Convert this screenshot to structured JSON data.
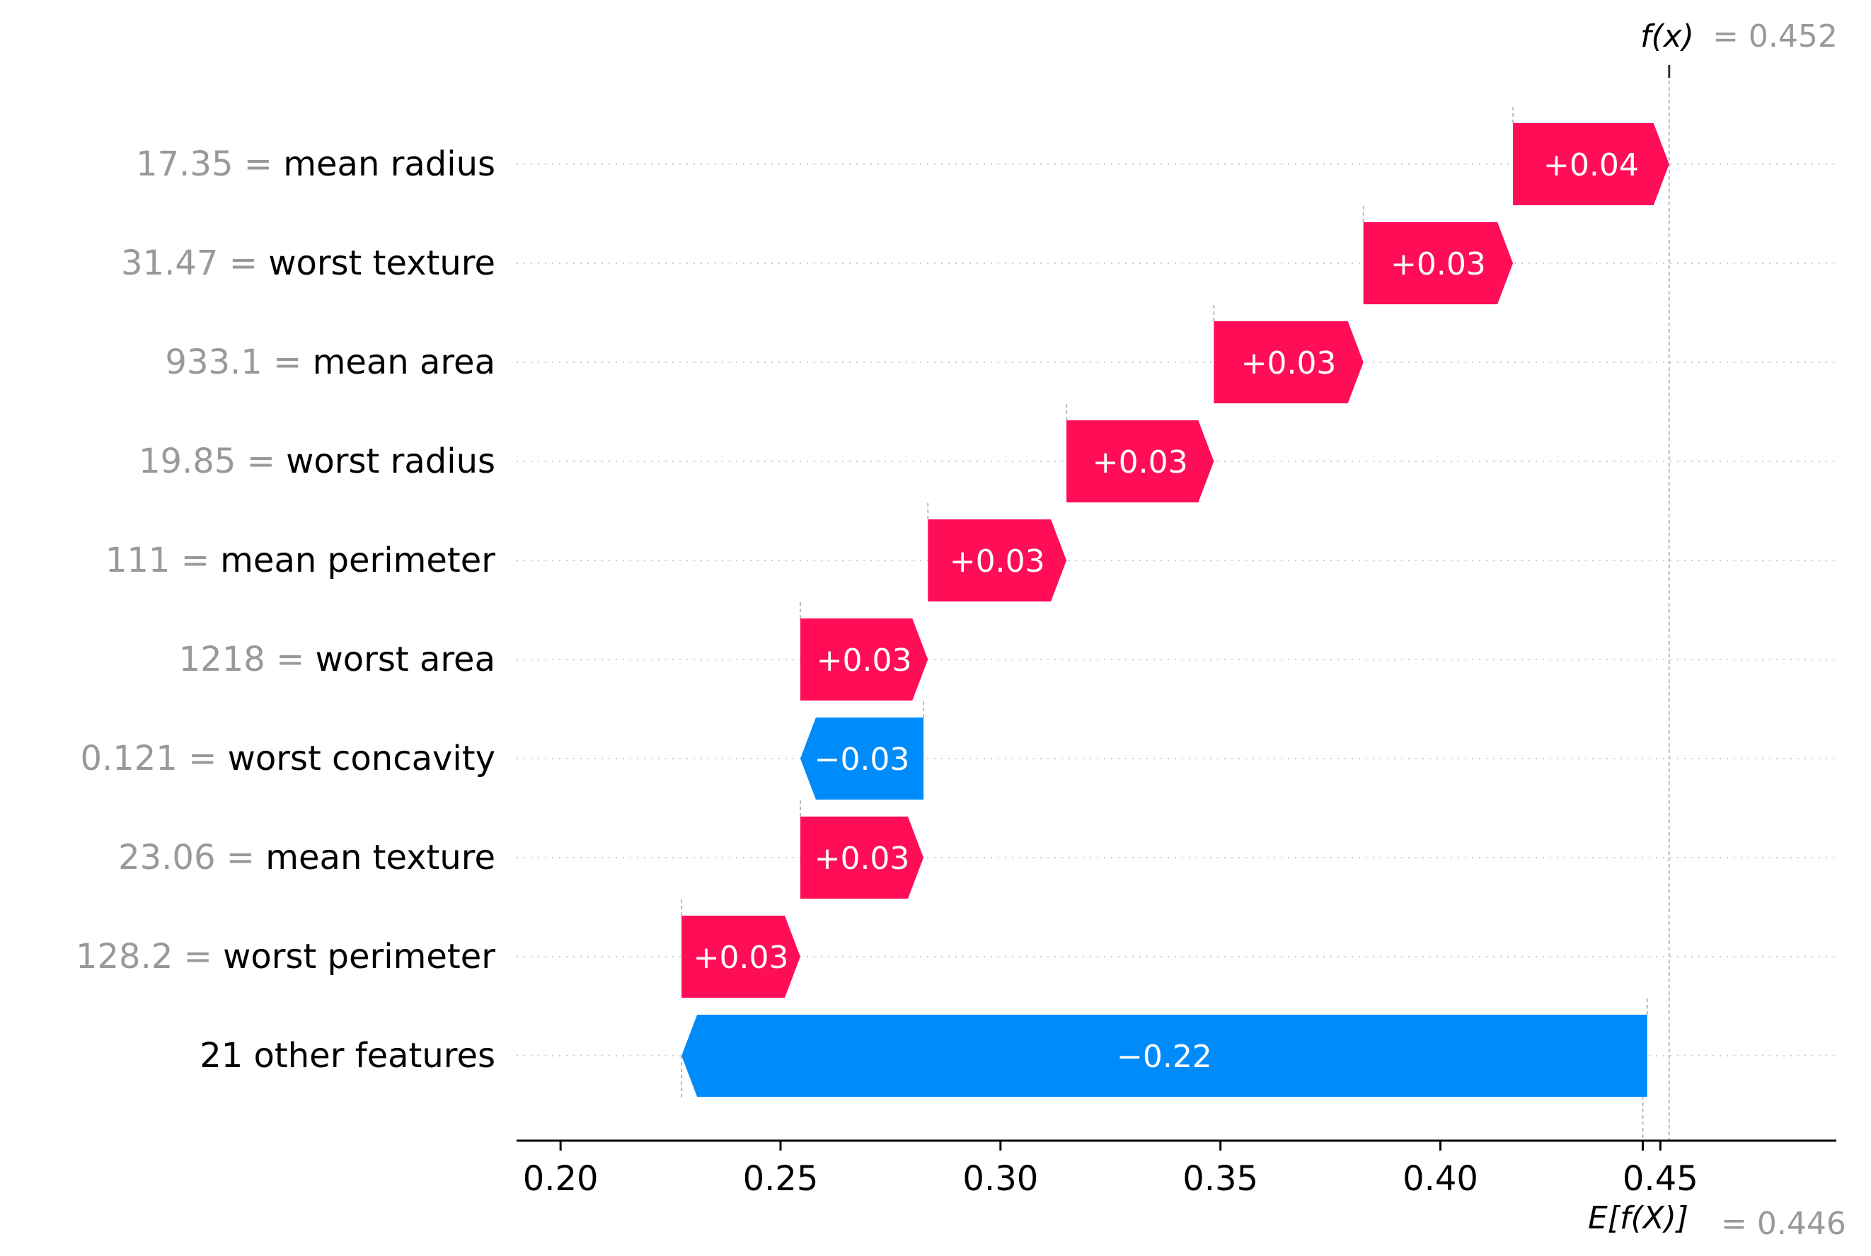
{
  "chart_data": {
    "type": "waterfall",
    "fx_label": "f(x)",
    "fx_value": "= 0.452",
    "base_label": "E[f(X)]",
    "base_value": "= 0.446",
    "base_value_num": 0.446,
    "fx_value_num": 0.452,
    "xlim": [
      0.19,
      0.49
    ],
    "xticks": [
      0.2,
      0.25,
      0.3,
      0.35,
      0.4,
      0.45
    ],
    "xtick_labels": [
      "0.20",
      "0.25",
      "0.30",
      "0.35",
      "0.40",
      "0.45"
    ],
    "colors": {
      "positive": "#ff0d57",
      "negative": "#008bfb"
    },
    "features": [
      {
        "value": "17.35 =",
        "name": "mean radius",
        "label": "+0.04",
        "start": 0.4165,
        "end": 0.452
      },
      {
        "value": "31.47 =",
        "name": "worst texture",
        "label": "+0.03",
        "start": 0.3825,
        "end": 0.4165
      },
      {
        "value": "933.1 =",
        "name": "mean area",
        "label": "+0.03",
        "start": 0.3485,
        "end": 0.3825
      },
      {
        "value": "19.85 =",
        "name": "worst radius",
        "label": "+0.03",
        "start": 0.315,
        "end": 0.3485
      },
      {
        "value": "111 =",
        "name": "mean perimeter",
        "label": "+0.03",
        "start": 0.2835,
        "end": 0.315
      },
      {
        "value": "1218 =",
        "name": "worst area",
        "label": "+0.03",
        "start": 0.2545,
        "end": 0.2835
      },
      {
        "value": "0.121 =",
        "name": "worst concavity",
        "label": "−0.03",
        "start": 0.2825,
        "end": 0.2545
      },
      {
        "value": "23.06 =",
        "name": "mean texture",
        "label": "+0.03",
        "start": 0.2545,
        "end": 0.2825
      },
      {
        "value": "128.2 =",
        "name": "worst perimeter",
        "label": "+0.03",
        "start": 0.2275,
        "end": 0.2545
      },
      {
        "value": "",
        "name": "21 other features",
        "label": "−0.22",
        "start": 0.447,
        "end": 0.2275
      }
    ]
  }
}
